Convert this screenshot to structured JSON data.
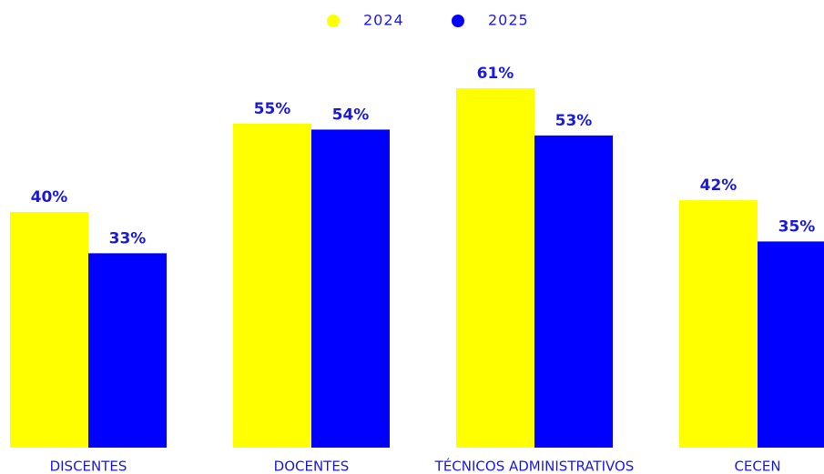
{
  "chart_data": {
    "type": "bar",
    "categories": [
      "DISCENTES",
      "DOCENTES",
      "TÉCNICOS ADMINISTRATIVOS",
      "CECEN"
    ],
    "series": [
      {
        "name": "2024",
        "color": "#ffff00",
        "values": [
          40,
          55,
          61,
          42
        ],
        "value_labels": [
          "40%",
          "55%",
          "61%",
          "42%"
        ]
      },
      {
        "name": "2025",
        "color": "#0000ff",
        "values": [
          33,
          54,
          53,
          35
        ],
        "value_labels": [
          "33%",
          "54%",
          "53%",
          "35%"
        ]
      }
    ],
    "ylim": [
      0,
      76
    ],
    "legend": "top"
  }
}
